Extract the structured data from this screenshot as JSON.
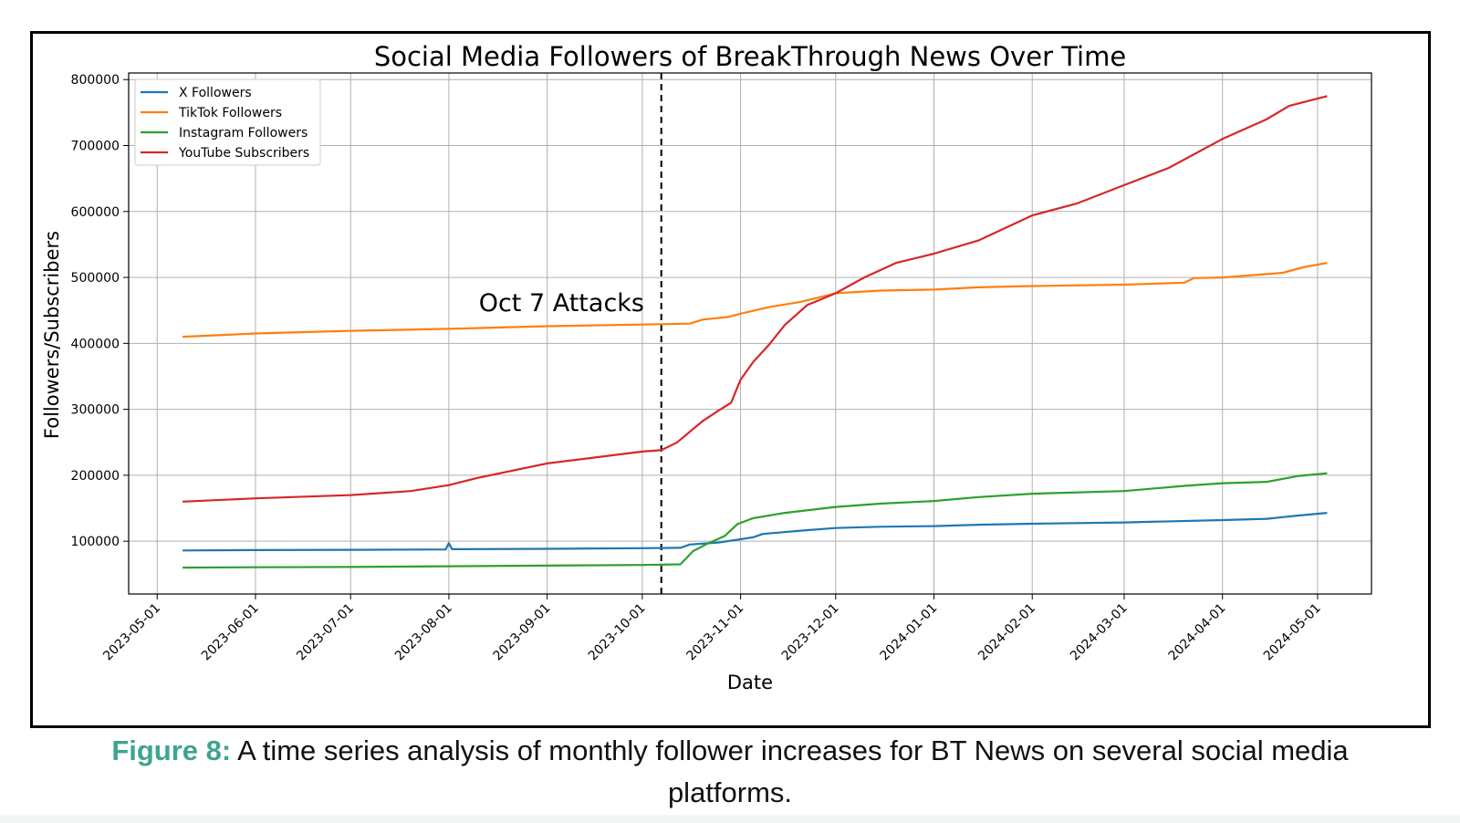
{
  "chart_data": {
    "type": "line",
    "title": "Social Media Followers of BreakThrough News Over Time",
    "xlabel": "Date",
    "ylabel": "Followers/Subscribers",
    "xlim": [
      "2023-04-22",
      "2024-05-18"
    ],
    "ylim": [
      20000,
      810000
    ],
    "yticks": [
      100000,
      200000,
      300000,
      400000,
      500000,
      600000,
      700000,
      800000
    ],
    "xticks": [
      "2023-05-01",
      "2023-06-01",
      "2023-07-01",
      "2023-08-01",
      "2023-09-01",
      "2023-10-01",
      "2023-11-01",
      "2023-12-01",
      "2024-01-01",
      "2024-02-01",
      "2024-03-01",
      "2024-04-01",
      "2024-05-01"
    ],
    "grid": true,
    "legend_position": "top-left",
    "annotation": {
      "text": "Oct 7 Attacks",
      "date": "2023-10-07"
    },
    "series": [
      {
        "name": "X Followers",
        "color": "#1f77b4",
        "points": [
          [
            "2023-05-09",
            86000
          ],
          [
            "2023-06-01",
            86500
          ],
          [
            "2023-07-01",
            87000
          ],
          [
            "2023-07-31",
            87500
          ],
          [
            "2023-08-01",
            97000
          ],
          [
            "2023-08-02",
            88000
          ],
          [
            "2023-09-01",
            88500
          ],
          [
            "2023-10-01",
            89500
          ],
          [
            "2023-10-13",
            90000
          ],
          [
            "2023-10-16",
            95000
          ],
          [
            "2023-10-25",
            98000
          ],
          [
            "2023-11-01",
            103000
          ],
          [
            "2023-11-05",
            106000
          ],
          [
            "2023-11-08",
            111000
          ],
          [
            "2023-11-20",
            116000
          ],
          [
            "2023-12-01",
            120000
          ],
          [
            "2023-12-15",
            122000
          ],
          [
            "2024-01-01",
            123000
          ],
          [
            "2024-01-15",
            125000
          ],
          [
            "2024-02-01",
            126500
          ],
          [
            "2024-03-01",
            128500
          ],
          [
            "2024-04-01",
            132000
          ],
          [
            "2024-04-15",
            134000
          ],
          [
            "2024-04-25",
            139000
          ],
          [
            "2024-05-04",
            143000
          ]
        ]
      },
      {
        "name": "TikTok Followers",
        "color": "#ff7f0e",
        "points": [
          [
            "2023-05-09",
            410000
          ],
          [
            "2023-06-01",
            415000
          ],
          [
            "2023-07-01",
            419000
          ],
          [
            "2023-08-01",
            422000
          ],
          [
            "2023-09-01",
            426000
          ],
          [
            "2023-10-01",
            428500
          ],
          [
            "2023-10-16",
            430000
          ],
          [
            "2023-10-20",
            436000
          ],
          [
            "2023-10-28",
            440000
          ],
          [
            "2023-11-01",
            445000
          ],
          [
            "2023-11-10",
            455000
          ],
          [
            "2023-11-20",
            463000
          ],
          [
            "2023-12-01",
            476000
          ],
          [
            "2023-12-15",
            480000
          ],
          [
            "2024-01-01",
            481500
          ],
          [
            "2024-01-15",
            485000
          ],
          [
            "2024-02-01",
            487000
          ],
          [
            "2024-03-01",
            489000
          ],
          [
            "2024-03-20",
            492000
          ],
          [
            "2024-03-23",
            499000
          ],
          [
            "2024-04-01",
            500000
          ],
          [
            "2024-04-20",
            507000
          ],
          [
            "2024-04-27",
            516000
          ],
          [
            "2024-05-04",
            522000
          ]
        ]
      },
      {
        "name": "Instagram Followers",
        "color": "#2ca02c",
        "points": [
          [
            "2023-05-09",
            60000
          ],
          [
            "2023-06-01",
            60500
          ],
          [
            "2023-07-01",
            61000
          ],
          [
            "2023-08-01",
            62000
          ],
          [
            "2023-09-01",
            63000
          ],
          [
            "2023-10-01",
            64000
          ],
          [
            "2023-10-13",
            65000
          ],
          [
            "2023-10-17",
            85000
          ],
          [
            "2023-10-21",
            95000
          ],
          [
            "2023-10-27",
            108000
          ],
          [
            "2023-10-31",
            126000
          ],
          [
            "2023-11-05",
            135000
          ],
          [
            "2023-11-15",
            143000
          ],
          [
            "2023-12-01",
            152000
          ],
          [
            "2023-12-15",
            157000
          ],
          [
            "2024-01-01",
            161000
          ],
          [
            "2024-01-15",
            167000
          ],
          [
            "2024-02-01",
            172000
          ],
          [
            "2024-03-01",
            176000
          ],
          [
            "2024-03-20",
            184000
          ],
          [
            "2024-04-01",
            188000
          ],
          [
            "2024-04-15",
            190000
          ],
          [
            "2024-04-25",
            199000
          ],
          [
            "2024-05-04",
            203000
          ]
        ]
      },
      {
        "name": "YouTube Subscribers",
        "color": "#d62728",
        "points": [
          [
            "2023-05-09",
            160000
          ],
          [
            "2023-06-01",
            165000
          ],
          [
            "2023-07-01",
            170000
          ],
          [
            "2023-07-20",
            176000
          ],
          [
            "2023-08-01",
            185000
          ],
          [
            "2023-08-10",
            196000
          ],
          [
            "2023-09-01",
            218000
          ],
          [
            "2023-10-01",
            236000
          ],
          [
            "2023-10-07",
            238000
          ],
          [
            "2023-10-12",
            250000
          ],
          [
            "2023-10-20",
            282000
          ],
          [
            "2023-10-25",
            298000
          ],
          [
            "2023-10-29",
            310000
          ],
          [
            "2023-11-01",
            345000
          ],
          [
            "2023-11-05",
            372000
          ],
          [
            "2023-11-10",
            398000
          ],
          [
            "2023-11-15",
            428000
          ],
          [
            "2023-11-22",
            458000
          ],
          [
            "2023-12-01",
            476000
          ],
          [
            "2023-12-10",
            500000
          ],
          [
            "2023-12-20",
            522000
          ],
          [
            "2024-01-01",
            536000
          ],
          [
            "2024-01-15",
            556000
          ],
          [
            "2024-02-01",
            594000
          ],
          [
            "2024-02-15",
            612000
          ],
          [
            "2024-03-01",
            640000
          ],
          [
            "2024-03-15",
            666000
          ],
          [
            "2024-04-01",
            710000
          ],
          [
            "2024-04-15",
            740000
          ],
          [
            "2024-04-22",
            760000
          ],
          [
            "2024-05-04",
            775000
          ]
        ]
      }
    ]
  },
  "caption": {
    "label": "Figure 8:",
    "label_color": "#3ea58f",
    "line1": "A time series analysis of monthly follower increases for BT News on several social media",
    "line2": "platforms."
  }
}
